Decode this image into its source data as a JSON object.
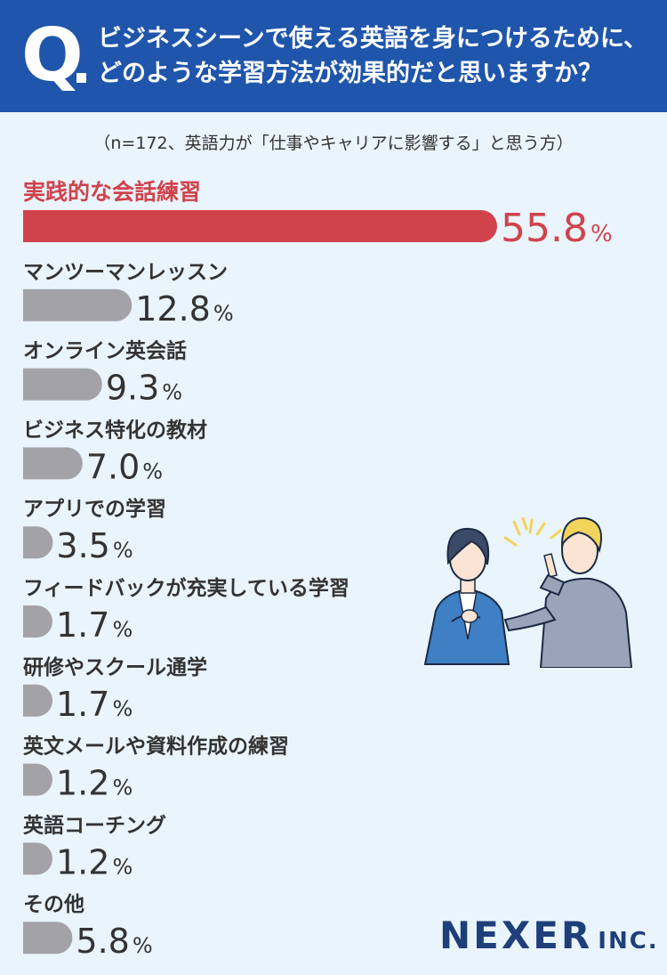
{
  "header": {
    "q_letter": "Q",
    "question": "ビジネスシーンで使える英語を身につけるために、\nどのような学習方法が効果的だと思いますか？"
  },
  "subtitle": "（n=172、英語力が「仕事やキャリアに影響する」と思う方）",
  "brand": {
    "name": "NEXER",
    "suffix": "INC."
  },
  "colors": {
    "header_bg": "#1f55ab",
    "highlight": "#d1434b",
    "bar_gray": "#a3a3a7",
    "background": "#eaf4fc"
  },
  "chart_data": {
    "type": "bar",
    "orientation": "horizontal",
    "unit": "%",
    "categories": [
      "実践的な会話練習",
      "マンツーマンレッスン",
      "オンライン英会話",
      "ビジネス特化の教材",
      "アプリでの学習",
      "フィードバックが充実している学習",
      "研修やスクール通学",
      "英文メールや資料作成の練習",
      "英語コーチング",
      "その他"
    ],
    "values": [
      55.8,
      12.8,
      9.3,
      7.0,
      3.5,
      1.7,
      1.7,
      1.2,
      1.2,
      5.8
    ],
    "value_labels": [
      "55.8",
      "12.8",
      "9.3",
      "7.0",
      "3.5",
      "1.7",
      "1.7",
      "1.2",
      "1.2",
      "5.8"
    ],
    "highlight_index": 0
  }
}
